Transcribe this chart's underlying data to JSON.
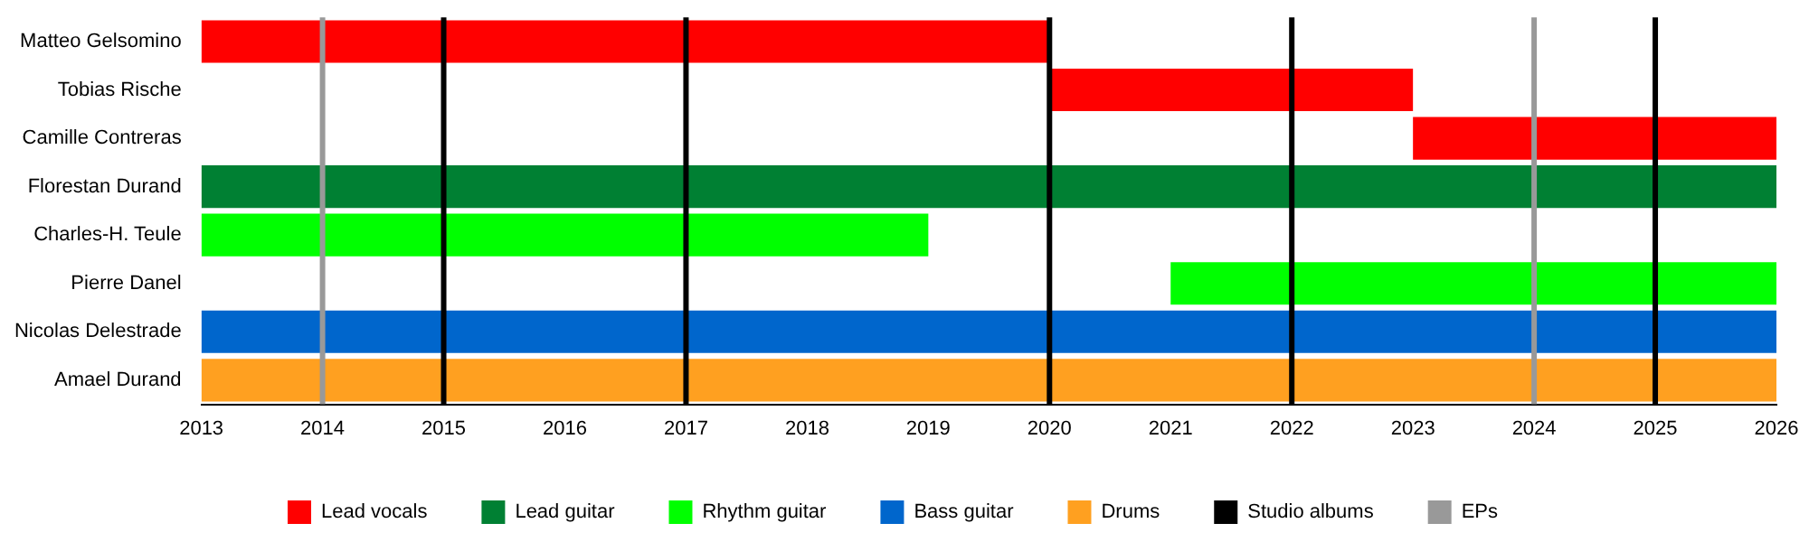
{
  "chart_data": {
    "type": "bar",
    "orientation": "horizontal",
    "categories": [
      "Matteo Gelsomino",
      "Tobias Rische",
      "Camille Contreras",
      "Florestan Durand",
      "Charles-H. Teule",
      "Pierre Danel",
      "Nicolas Delestrade",
      "Amael Durand"
    ],
    "series": [
      {
        "name": "Lead vocals",
        "color": "#ff0000",
        "values": [
          7,
          3,
          3,
          null,
          null,
          null,
          null,
          null
        ],
        "base": [
          2013,
          2020,
          2023,
          null,
          null,
          null,
          null,
          null
        ]
      },
      {
        "name": "Lead guitar",
        "color": "#008033",
        "values": [
          null,
          null,
          null,
          13,
          null,
          null,
          null,
          null
        ],
        "base": [
          null,
          null,
          null,
          2013,
          null,
          null,
          null,
          null
        ]
      },
      {
        "name": "Rhythm guitar",
        "color": "#00ff00",
        "values": [
          null,
          null,
          null,
          null,
          6,
          5,
          null,
          null
        ],
        "base": [
          null,
          null,
          null,
          null,
          2013,
          2021,
          null,
          null
        ]
      },
      {
        "name": "Bass guitar",
        "color": "#0066cc",
        "values": [
          null,
          null,
          null,
          null,
          null,
          null,
          13,
          null
        ],
        "base": [
          null,
          null,
          null,
          null,
          null,
          null,
          2013,
          null
        ]
      },
      {
        "name": "Drums",
        "color": "#ffa020",
        "values": [
          null,
          null,
          null,
          null,
          null,
          null,
          null,
          13
        ],
        "base": [
          null,
          null,
          null,
          null,
          null,
          null,
          null,
          2013
        ]
      }
    ],
    "xlim": [
      2013,
      2026
    ],
    "xticks": [
      2013,
      2014,
      2015,
      2016,
      2017,
      2018,
      2019,
      2020,
      2021,
      2022,
      2023,
      2024,
      2025,
      2026
    ],
    "ref_lines": [
      {
        "axis": "x",
        "value": 2015,
        "label": "Studio albums",
        "color": "#000000"
      },
      {
        "axis": "x",
        "value": 2017,
        "color": "#000000"
      },
      {
        "axis": "x",
        "value": 2020,
        "color": "#000000"
      },
      {
        "axis": "x",
        "value": 2022,
        "color": "#000000"
      },
      {
        "axis": "x",
        "value": 2025,
        "color": "#000000"
      },
      {
        "axis": "x",
        "value": 2014,
        "label": "EPs",
        "color": "#999999"
      },
      {
        "axis": "x",
        "value": 2024,
        "color": "#999999"
      }
    ],
    "grid": false,
    "legend": "bottom"
  }
}
